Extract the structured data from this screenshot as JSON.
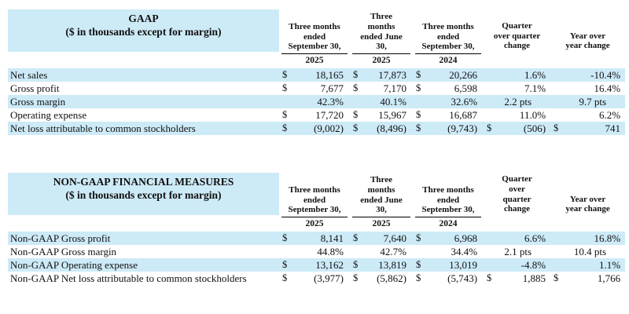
{
  "colors": {
    "highlight": "#cdeaf7",
    "text": "#111111",
    "rule": "#000000"
  },
  "tables": [
    {
      "name": "gaap",
      "title": "GAAP",
      "subtitle": "($ in thousands except for margin)",
      "columns": [
        {
          "label": "Three months\nended\nSeptember 30,",
          "year": "2025",
          "underlined": true
        },
        {
          "label": "Three\nmonths\nended June\n30,",
          "year": "2025",
          "underlined": true
        },
        {
          "label": "Three months\nended\nSeptember 30,",
          "year": "2024",
          "underlined": true
        },
        {
          "label": "Quarter\nover quarter\nchange",
          "year": "",
          "underlined": false
        },
        {
          "label": "Year over\nyear change",
          "year": "",
          "underlined": false
        }
      ],
      "rows": [
        {
          "label": "Net sales",
          "cells": [
            {
              "d": "$",
              "v": "18,165"
            },
            {
              "d": "$",
              "v": "17,873"
            },
            {
              "d": "$",
              "v": "20,266"
            },
            {
              "d": "",
              "v": "1.6%"
            },
            {
              "d": "",
              "v": "-10.4%"
            }
          ]
        },
        {
          "label": "Gross profit",
          "cells": [
            {
              "d": "$",
              "v": "7,677"
            },
            {
              "d": "$",
              "v": "7,170"
            },
            {
              "d": "$",
              "v": "6,598"
            },
            {
              "d": "",
              "v": "7.1%"
            },
            {
              "d": "",
              "v": "16.4%"
            }
          ]
        },
        {
          "label": "Gross margin",
          "cells": [
            {
              "d": "",
              "v": "42.3%"
            },
            {
              "d": "",
              "v": "40.1%"
            },
            {
              "d": "",
              "v": "32.6%"
            },
            {
              "d": "",
              "v": "2.2 pts"
            },
            {
              "d": "",
              "v": "9.7 pts"
            }
          ]
        },
        {
          "label": "Operating expense",
          "cells": [
            {
              "d": "$",
              "v": "17,720"
            },
            {
              "d": "$",
              "v": "15,967"
            },
            {
              "d": "$",
              "v": "16,687"
            },
            {
              "d": "",
              "v": "11.0%"
            },
            {
              "d": "",
              "v": "6.2%"
            }
          ]
        },
        {
          "label": "Net loss attributable to common stockholders",
          "cells": [
            {
              "d": "$",
              "v": "(9,002)"
            },
            {
              "d": "$",
              "v": "(8,496)"
            },
            {
              "d": "$",
              "v": "(9,743)"
            },
            {
              "d": "$",
              "v": "(506)"
            },
            {
              "d": "$",
              "v": "741"
            }
          ]
        }
      ]
    },
    {
      "name": "non-gaap",
      "title": "NON-GAAP FINANCIAL MEASURES",
      "subtitle": "($ in thousands except for margin)",
      "columns": [
        {
          "label": "Three months\nended\nSeptember 30,",
          "year": "2025",
          "underlined": true
        },
        {
          "label": "Three\nmonths\nended June\n30,",
          "year": "2025",
          "underlined": true
        },
        {
          "label": "Three months\nended\nSeptember 30,",
          "year": "2024",
          "underlined": true
        },
        {
          "label": "Quarter\nover\nquarter\nchange",
          "year": "",
          "underlined": false
        },
        {
          "label": "Year over\nyear change",
          "year": "",
          "underlined": false
        }
      ],
      "rows": [
        {
          "label": "Non-GAAP Gross profit",
          "cells": [
            {
              "d": "$",
              "v": "8,141"
            },
            {
              "d": "$",
              "v": "7,640"
            },
            {
              "d": "$",
              "v": "6,968"
            },
            {
              "d": "",
              "v": "6.6%"
            },
            {
              "d": "",
              "v": "16.8%"
            }
          ]
        },
        {
          "label": "Non-GAAP Gross margin",
          "cells": [
            {
              "d": "",
              "v": "44.8%"
            },
            {
              "d": "",
              "v": "42.7%"
            },
            {
              "d": "",
              "v": "34.4%"
            },
            {
              "d": "",
              "v": "2.1 pts"
            },
            {
              "d": "",
              "v": "10.4 pts"
            }
          ]
        },
        {
          "label": "Non-GAAP Operating expense",
          "cells": [
            {
              "d": "$",
              "v": "13,162"
            },
            {
              "d": "$",
              "v": "13,819"
            },
            {
              "d": "$",
              "v": "13,019"
            },
            {
              "d": "",
              "v": "-4.8%"
            },
            {
              "d": "",
              "v": "1.1%"
            }
          ]
        },
        {
          "label": "Non-GAAP Net loss attributable to common stockholders",
          "cells": [
            {
              "d": "$",
              "v": "(3,977)"
            },
            {
              "d": "$",
              "v": "(5,862)"
            },
            {
              "d": "$",
              "v": "(5,743)"
            },
            {
              "d": "$",
              "v": "1,885"
            },
            {
              "d": "$",
              "v": "1,766"
            }
          ]
        }
      ]
    }
  ]
}
